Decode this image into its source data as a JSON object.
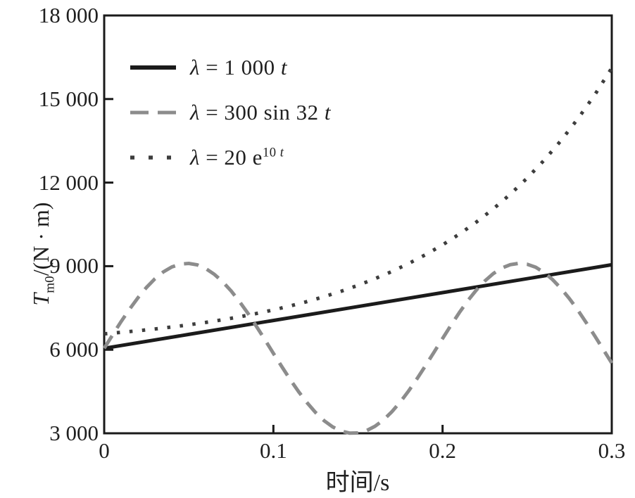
{
  "figure": {
    "xlabel": "时间/s",
    "ylabel": {
      "t": "T",
      "sub": "m0",
      "rest": "/(N · m)"
    }
  },
  "legend": {
    "items": [
      {
        "sym": "λ",
        "eq": " = 1 000 ",
        "var": "t",
        "sup": "",
        "supvar": ""
      },
      {
        "sym": "λ",
        "eq": " = 300 sin 32 ",
        "var": "t",
        "sup": "",
        "supvar": ""
      },
      {
        "sym": "λ",
        "eq": " = 20 e",
        "var": "",
        "sup": "10 ",
        "supvar": "t"
      }
    ]
  },
  "chart_data": {
    "type": "line",
    "xlabel": "时间/s",
    "ylabel": "T_m0/(N·m)",
    "xlim": [
      0,
      0.3
    ],
    "ylim": [
      3000,
      18000
    ],
    "x_ticks": [
      0,
      0.1,
      0.2,
      0.3
    ],
    "x_tick_labels": [
      "0",
      "0.1",
      "0.2",
      "0.3"
    ],
    "y_ticks": [
      3000,
      6000,
      9000,
      12000,
      15000,
      18000
    ],
    "y_tick_labels": [
      "3 000",
      "6 000",
      "9 000",
      "12 000",
      "15 000",
      "18 000"
    ],
    "grid": false,
    "legend_position": "upper-left-inside",
    "axis_color": "#1a1a1a",
    "series": [
      {
        "name": "λ = 1 000 t",
        "style": "solid",
        "color": "#1b1b1b",
        "width": 5,
        "x": [
          0,
          0.05,
          0.1,
          0.15,
          0.2,
          0.25,
          0.3
        ],
        "y": [
          6050,
          6550,
          7050,
          7550,
          8050,
          8550,
          9050
        ]
      },
      {
        "name": "λ = 300 sin 32 t",
        "style": "dashed",
        "color": "#8c8c8c",
        "width": 5,
        "x": [
          0,
          0.005,
          0.01,
          0.015,
          0.02,
          0.025,
          0.03,
          0.035,
          0.04,
          0.045,
          0.05,
          0.055,
          0.06,
          0.065,
          0.07,
          0.075,
          0.08,
          0.085,
          0.09,
          0.095,
          0.1,
          0.105,
          0.11,
          0.115,
          0.12,
          0.125,
          0.13,
          0.135,
          0.14,
          0.145,
          0.15,
          0.155,
          0.16,
          0.165,
          0.17,
          0.175,
          0.18,
          0.185,
          0.19,
          0.195,
          0.2,
          0.205,
          0.21,
          0.215,
          0.22,
          0.225,
          0.23,
          0.235,
          0.24,
          0.245,
          0.25,
          0.255,
          0.26,
          0.265,
          0.27,
          0.275,
          0.28,
          0.285,
          0.29,
          0.295,
          0.3
        ],
        "y": [
          6050,
          6536,
          7009,
          7458,
          7871,
          8238,
          8549,
          8795,
          8971,
          9074,
          9099,
          9047,
          8915,
          8713,
          8441,
          8110,
          7726,
          7304,
          6836,
          6360,
          5872,
          5389,
          4923,
          4486,
          4090,
          3742,
          3453,
          3231,
          3082,
          3008,
          3012,
          3093,
          3250,
          3476,
          3773,
          4125,
          4526,
          4967,
          5435,
          5918,
          6405,
          6884,
          7340,
          7764,
          8144,
          8470,
          8736,
          8931,
          9054,
          9100,
          9068,
          8961,
          8773,
          8517,
          8199,
          7833,
          7418,
          6964,
          6491,
          6004,
          5520
        ]
      },
      {
        "name": "λ = 20 e^(10 t)",
        "style": "dotted",
        "color": "#3d3d3d",
        "width": 5,
        "x": [
          0,
          0.01,
          0.02,
          0.03,
          0.04,
          0.05,
          0.06,
          0.07,
          0.08,
          0.09,
          0.1,
          0.11,
          0.12,
          0.13,
          0.14,
          0.15,
          0.16,
          0.17,
          0.18,
          0.19,
          0.2,
          0.21,
          0.22,
          0.23,
          0.24,
          0.25,
          0.26,
          0.27,
          0.28,
          0.29,
          0.3
        ],
        "y": [
          6570,
          6623,
          6681,
          6745,
          6816,
          6894,
          6981,
          7077,
          7183,
          7300,
          7429,
          7572,
          7730,
          7905,
          8098,
          8311,
          8547,
          8807,
          9095,
          9413,
          9765,
          10153,
          10583,
          11057,
          11582,
          12161,
          12802,
          13510,
          14292,
          15157,
          16113
        ]
      }
    ]
  }
}
